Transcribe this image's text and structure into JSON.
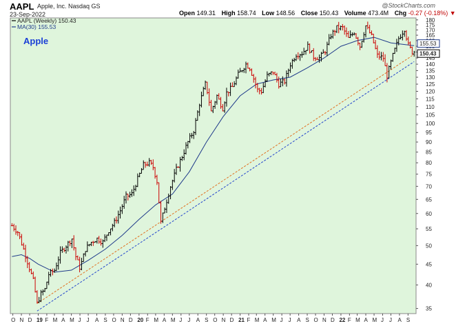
{
  "header": {
    "symbol": "AAPL",
    "company": "Apple, Inc.  Nasdaq GS",
    "date": "23-Sep-2022",
    "watermark": "@StockCharts.com",
    "ohlc": {
      "open_label": "Open",
      "open": "149.31",
      "high_label": "High",
      "high": "158.74",
      "low_label": "Low",
      "low": "148.56",
      "close_label": "Close",
      "close": "150.43",
      "volume_label": "Volume",
      "volume": "473.4M",
      "chg_label": "Chg",
      "chg": "-0.27 (-0.18%)",
      "chg_arrow": "▼"
    }
  },
  "chart_data": {
    "type": "line",
    "title": "Apple",
    "log_scale": true,
    "ylim": [
      34,
      182
    ],
    "y_ticks": [
      35,
      40,
      45,
      50,
      55,
      60,
      65,
      70,
      75,
      80,
      85,
      90,
      95,
      100,
      105,
      110,
      115,
      120,
      125,
      130,
      135,
      140,
      145,
      150,
      155,
      160,
      165,
      170,
      175,
      180
    ],
    "x_ticks": [
      {
        "date": "2018-10-01",
        "label": "O"
      },
      {
        "date": "2018-11-01",
        "label": "N"
      },
      {
        "date": "2018-12-01",
        "label": "D"
      },
      {
        "date": "2019-01-01",
        "label": "19",
        "year": true
      },
      {
        "date": "2019-02-01",
        "label": "F"
      },
      {
        "date": "2019-03-01",
        "label": "M"
      },
      {
        "date": "2019-04-01",
        "label": "A"
      },
      {
        "date": "2019-05-01",
        "label": "M"
      },
      {
        "date": "2019-06-01",
        "label": "J"
      },
      {
        "date": "2019-07-01",
        "label": "J"
      },
      {
        "date": "2019-08-01",
        "label": "A"
      },
      {
        "date": "2019-09-01",
        "label": "S"
      },
      {
        "date": "2019-10-01",
        "label": "O"
      },
      {
        "date": "2019-11-01",
        "label": "N"
      },
      {
        "date": "2019-12-01",
        "label": "D"
      },
      {
        "date": "2020-01-01",
        "label": "20",
        "year": true
      },
      {
        "date": "2020-02-01",
        "label": "F"
      },
      {
        "date": "2020-03-01",
        "label": "M"
      },
      {
        "date": "2020-04-01",
        "label": "A"
      },
      {
        "date": "2020-05-01",
        "label": "M"
      },
      {
        "date": "2020-06-01",
        "label": "J"
      },
      {
        "date": "2020-07-01",
        "label": "J"
      },
      {
        "date": "2020-08-01",
        "label": "A"
      },
      {
        "date": "2020-09-01",
        "label": "S"
      },
      {
        "date": "2020-10-01",
        "label": "O"
      },
      {
        "date": "2020-11-01",
        "label": "N"
      },
      {
        "date": "2020-12-01",
        "label": "D"
      },
      {
        "date": "2021-01-01",
        "label": "21",
        "year": true
      },
      {
        "date": "2021-02-01",
        "label": "F"
      },
      {
        "date": "2021-03-01",
        "label": "M"
      },
      {
        "date": "2021-04-01",
        "label": "A"
      },
      {
        "date": "2021-05-01",
        "label": "M"
      },
      {
        "date": "2021-06-01",
        "label": "J"
      },
      {
        "date": "2021-07-01",
        "label": "J"
      },
      {
        "date": "2021-08-01",
        "label": "A"
      },
      {
        "date": "2021-09-01",
        "label": "S"
      },
      {
        "date": "2021-10-01",
        "label": "O"
      },
      {
        "date": "2021-11-01",
        "label": "N"
      },
      {
        "date": "2021-12-01",
        "label": "D"
      },
      {
        "date": "2022-01-01",
        "label": "22",
        "year": true
      },
      {
        "date": "2022-02-01",
        "label": "F"
      },
      {
        "date": "2022-03-01",
        "label": "M"
      },
      {
        "date": "2022-04-01",
        "label": "A"
      },
      {
        "date": "2022-05-01",
        "label": "M"
      },
      {
        "date": "2022-06-01",
        "label": "J"
      },
      {
        "date": "2022-07-01",
        "label": "J"
      },
      {
        "date": "2022-08-01",
        "label": "A"
      },
      {
        "date": "2022-09-01",
        "label": "S"
      }
    ],
    "legend": [
      {
        "name": "AAPL (Weekly) 150.43",
        "color": "#000000"
      },
      {
        "name": "MA(30) 155.53",
        "color": "#1f3a8a"
      }
    ],
    "price_badges": [
      {
        "value": 155.53,
        "label": "155.53",
        "color": "#1f3a8a"
      },
      {
        "value": 150.43,
        "label": "150.43",
        "color": "#000000"
      }
    ],
    "price_series": {
      "name": "AAPL (Weekly) 150.43",
      "up_color": "#000000",
      "down_color": "#cc0000",
      "close_points": [
        [
          "2018-09-28",
          56
        ],
        [
          "2018-10-19",
          54
        ],
        [
          "2018-11-09",
          49
        ],
        [
          "2018-11-30",
          44
        ],
        [
          "2018-12-14",
          41
        ],
        [
          "2018-12-28",
          36
        ],
        [
          "2019-01-11",
          38
        ],
        [
          "2019-01-25",
          39
        ],
        [
          "2019-02-08",
          42.5
        ],
        [
          "2019-03-01",
          43.5
        ],
        [
          "2019-03-22",
          48
        ],
        [
          "2019-04-12",
          50
        ],
        [
          "2019-05-03",
          52
        ],
        [
          "2019-05-17",
          47
        ],
        [
          "2019-06-01",
          44
        ],
        [
          "2019-06-21",
          49
        ],
        [
          "2019-07-12",
          51
        ],
        [
          "2019-08-02",
          52
        ],
        [
          "2019-08-23",
          51
        ],
        [
          "2019-09-13",
          54.5
        ],
        [
          "2019-10-04",
          57
        ],
        [
          "2019-10-25",
          61
        ],
        [
          "2019-11-15",
          66
        ],
        [
          "2019-12-06",
          67
        ],
        [
          "2019-12-27",
          73
        ],
        [
          "2020-01-17",
          79
        ],
        [
          "2020-02-07",
          80
        ],
        [
          "2020-02-21",
          78
        ],
        [
          "2020-03-06",
          72
        ],
        [
          "2020-03-20",
          57
        ],
        [
          "2020-04-03",
          62
        ],
        [
          "2020-04-24",
          70
        ],
        [
          "2020-05-15",
          77
        ],
        [
          "2020-06-05",
          83
        ],
        [
          "2020-06-26",
          90
        ],
        [
          "2020-07-17",
          96
        ],
        [
          "2020-08-07",
          112
        ],
        [
          "2020-08-28",
          125
        ],
        [
          "2020-09-04",
          120
        ],
        [
          "2020-09-18",
          107
        ],
        [
          "2020-10-09",
          117
        ],
        [
          "2020-10-30",
          109
        ],
        [
          "2020-11-13",
          119
        ],
        [
          "2020-12-04",
          123
        ],
        [
          "2020-12-25",
          132
        ],
        [
          "2021-01-22",
          140
        ],
        [
          "2021-02-05",
          137
        ],
        [
          "2021-02-19",
          129
        ],
        [
          "2021-03-05",
          121
        ],
        [
          "2021-03-19",
          120
        ],
        [
          "2021-04-09",
          131
        ],
        [
          "2021-04-30",
          134
        ],
        [
          "2021-05-21",
          125
        ],
        [
          "2021-06-11",
          127
        ],
        [
          "2021-07-02",
          140
        ],
        [
          "2021-07-23",
          148
        ],
        [
          "2021-08-13",
          149
        ],
        [
          "2021-09-03",
          155
        ],
        [
          "2021-09-24",
          146
        ],
        [
          "2021-10-15",
          145
        ],
        [
          "2021-11-05",
          151
        ],
        [
          "2021-11-26",
          165
        ],
        [
          "2021-12-17",
          172
        ],
        [
          "2022-01-07",
          172
        ],
        [
          "2022-01-28",
          162
        ],
        [
          "2022-02-18",
          168
        ],
        [
          "2022-03-11",
          155
        ],
        [
          "2022-04-01",
          174
        ],
        [
          "2022-04-22",
          164
        ],
        [
          "2022-05-13",
          147
        ],
        [
          "2022-06-03",
          145
        ],
        [
          "2022-06-17",
          131
        ],
        [
          "2022-07-08",
          147
        ],
        [
          "2022-07-29",
          162
        ],
        [
          "2022-08-19",
          171
        ],
        [
          "2022-09-02",
          156
        ],
        [
          "2022-09-16",
          150
        ],
        [
          "2022-09-23",
          150.43
        ]
      ]
    },
    "ma30_series": {
      "name": "MA(30) 155.53",
      "color": "#1f3a8a",
      "points": [
        [
          "2018-09-28",
          47
        ],
        [
          "2018-11-01",
          47.5
        ],
        [
          "2018-12-01",
          46.5
        ],
        [
          "2019-01-01",
          45
        ],
        [
          "2019-03-01",
          43
        ],
        [
          "2019-05-01",
          43.5
        ],
        [
          "2019-07-01",
          46
        ],
        [
          "2019-09-01",
          49
        ],
        [
          "2019-11-01",
          53
        ],
        [
          "2020-01-01",
          58
        ],
        [
          "2020-03-01",
          63
        ],
        [
          "2020-05-01",
          67
        ],
        [
          "2020-07-01",
          76
        ],
        [
          "2020-09-01",
          90
        ],
        [
          "2020-11-01",
          104
        ],
        [
          "2021-01-01",
          117
        ],
        [
          "2021-03-01",
          125
        ],
        [
          "2021-05-01",
          128
        ],
        [
          "2021-07-01",
          130
        ],
        [
          "2021-09-01",
          137
        ],
        [
          "2021-11-01",
          145
        ],
        [
          "2022-01-01",
          155
        ],
        [
          "2022-03-01",
          160
        ],
        [
          "2022-05-01",
          163
        ],
        [
          "2022-07-01",
          158
        ],
        [
          "2022-09-23",
          155.53
        ]
      ]
    },
    "trendlines": [
      {
        "name": "upper-trendline",
        "color": "#e07020",
        "dash": true,
        "from": [
          "2018-12-28",
          36
        ],
        "to": [
          "2022-09-23",
          148
        ]
      },
      {
        "name": "lower-trendline",
        "color": "#2244cc",
        "dash": true,
        "from": [
          "2018-12-28",
          34.5
        ],
        "to": [
          "2022-09-23",
          142
        ]
      }
    ],
    "background": "#dff5dc",
    "grid": false
  }
}
